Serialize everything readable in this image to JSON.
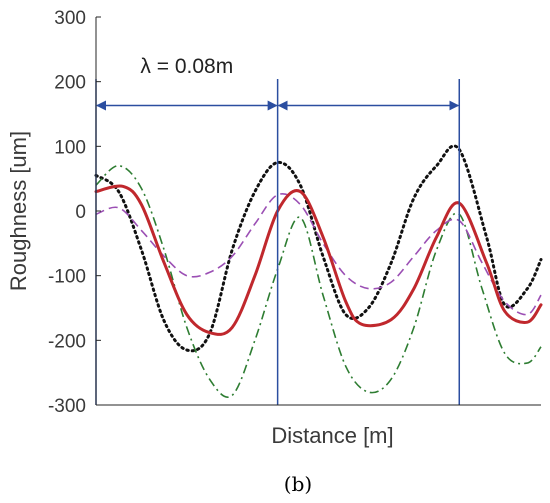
{
  "chart_data": {
    "type": "line",
    "title": "",
    "xlabel": "Distance [m]",
    "ylabel": "Roughness [um]",
    "xlim": [
      0,
      0.196
    ],
    "ylim": [
      -300,
      300
    ],
    "yticks": [
      -300,
      -200,
      -100,
      0,
      100,
      200,
      300
    ],
    "ytick_labels": [
      "-300",
      "-200",
      "-100",
      "0",
      "100",
      "200",
      "300"
    ],
    "grid": false,
    "legend": "none",
    "series": [
      {
        "style": "solid-thick",
        "color": "#c0282d",
        "x": [
          0.0,
          0.012,
          0.02,
          0.03,
          0.04,
          0.05,
          0.06,
          0.07,
          0.08,
          0.09,
          0.1,
          0.11,
          0.117,
          0.13,
          0.14,
          0.15,
          0.16,
          0.172,
          0.18,
          0.19,
          0.196
        ],
        "y": [
          30,
          38,
          10,
          -80,
          -160,
          -188,
          -180,
          -100,
          0,
          30,
          -40,
          -140,
          -175,
          -168,
          -120,
          -40,
          12,
          -80,
          -155,
          -172,
          -145
        ]
      },
      {
        "style": "dotted",
        "color": "#111111",
        "x": [
          0.0,
          0.01,
          0.02,
          0.03,
          0.04,
          0.05,
          0.06,
          0.07,
          0.08,
          0.09,
          0.1,
          0.11,
          0.12,
          0.13,
          0.14,
          0.15,
          0.16,
          0.172,
          0.18,
          0.19,
          0.196
        ],
        "y": [
          55,
          30,
          -60,
          -170,
          -215,
          -190,
          -60,
          30,
          75,
          40,
          -70,
          -160,
          -150,
          -80,
          20,
          70,
          95,
          -40,
          -145,
          -120,
          -75
        ]
      },
      {
        "style": "dash-dot",
        "color": "#2e7d32",
        "x": [
          0.0,
          0.01,
          0.02,
          0.03,
          0.04,
          0.05,
          0.06,
          0.07,
          0.08,
          0.09,
          0.1,
          0.11,
          0.12,
          0.13,
          0.14,
          0.15,
          0.16,
          0.17,
          0.18,
          0.19,
          0.196
        ],
        "y": [
          40,
          70,
          35,
          -60,
          -180,
          -260,
          -285,
          -200,
          -90,
          -10,
          -130,
          -240,
          -280,
          -260,
          -180,
          -60,
          -5,
          -120,
          -220,
          -235,
          -210
        ]
      },
      {
        "style": "dashed",
        "color": "#9b4fb4",
        "x": [
          0.0,
          0.01,
          0.02,
          0.03,
          0.04,
          0.05,
          0.06,
          0.07,
          0.08,
          0.09,
          0.1,
          0.11,
          0.12,
          0.13,
          0.14,
          0.15,
          0.16,
          0.17,
          0.18,
          0.19,
          0.196
        ],
        "y": [
          -5,
          5,
          -30,
          -70,
          -100,
          -95,
          -70,
          -20,
          25,
          10,
          -50,
          -100,
          -120,
          -110,
          -70,
          -30,
          -15,
          -80,
          -140,
          -160,
          -130
        ]
      }
    ],
    "annotations": {
      "lambda_text": "λ = 0.08m",
      "vertical_lines_x": [
        0.0,
        0.08,
        0.16
      ],
      "arrow_y": 160
    }
  },
  "caption": {
    "label": "(b)"
  }
}
